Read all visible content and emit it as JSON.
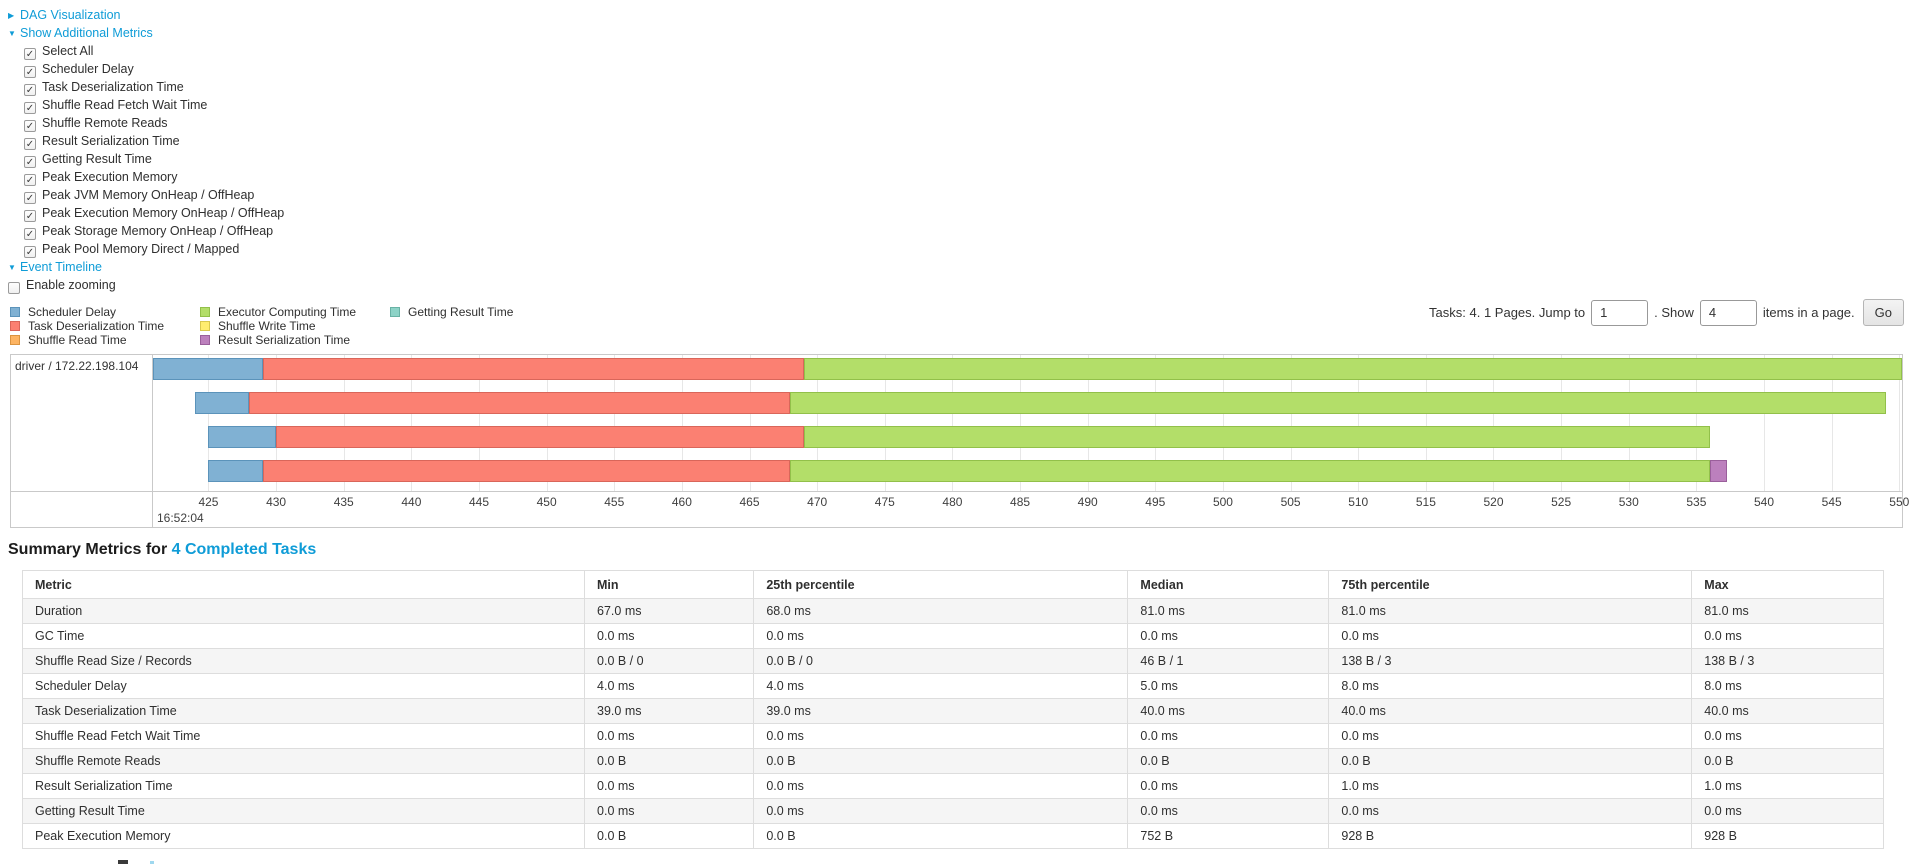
{
  "metrics_panel": {
    "dag_link": "DAG Visualization",
    "metrics_link": "Show Additional Metrics",
    "checkbox_items": [
      "Select All",
      "Scheduler Delay",
      "Task Deserialization Time",
      "Shuffle Read Fetch Wait Time",
      "Shuffle Remote Reads",
      "Result Serialization Time",
      "Getting Result Time",
      "Peak Execution Memory",
      "Peak JVM Memory OnHeap / OffHeap",
      "Peak Execution Memory OnHeap / OffHeap",
      "Peak Storage Memory OnHeap / OffHeap",
      "Peak Pool Memory Direct / Mapped"
    ],
    "timeline_link": "Event Timeline",
    "enable_zooming_label": "Enable zooming"
  },
  "pagination": {
    "prefix": "Tasks: 4. 1 Pages. Jump to",
    "page_value": "1",
    "mid": ". Show",
    "show_value": "4",
    "suffix": "items in a page.",
    "go_label": "Go"
  },
  "chart_data": {
    "type": "timeline",
    "row_label": "driver / 172.22.198.104",
    "time_label": "16:52:04",
    "axis": {
      "min": 420.9,
      "max": 550.2,
      "tick_start": 425,
      "tick_end": 550,
      "tick_step": 5,
      "unit": "ms within 16:52:04"
    },
    "legend": [
      {
        "label": "Scheduler Delay",
        "color": "#80B1D3",
        "border": "#5b93ba"
      },
      {
        "label": "Task Deserialization Time",
        "color": "#FB8072",
        "border": "#d9665a"
      },
      {
        "label": "Shuffle Read Time",
        "color": "#FDB462",
        "border": "#db9440"
      },
      {
        "label": "Executor Computing Time",
        "color": "#B3DE69",
        "border": "#92c04a"
      },
      {
        "label": "Shuffle Write Time",
        "color": "#FFED6F",
        "border": "#d9c84f"
      },
      {
        "label": "Result Serialization Time",
        "color": "#BC80BD",
        "border": "#9a5f9b"
      },
      {
        "label": "Getting Result Time",
        "color": "#8DD3C7",
        "border": "#68b2a5"
      }
    ],
    "legend_columns": [
      [
        "Scheduler Delay",
        "Task Deserialization Time",
        "Shuffle Read Time"
      ],
      [
        "Executor Computing Time",
        "Shuffle Write Time",
        "Result Serialization Time"
      ],
      [
        "Getting Result Time"
      ]
    ],
    "tasks": [
      {
        "segments": [
          {
            "metric": "Scheduler Delay",
            "start": 420.9,
            "end": 429
          },
          {
            "metric": "Task Deserialization Time",
            "start": 429,
            "end": 469
          },
          {
            "metric": "Executor Computing Time",
            "start": 469,
            "end": 550.2
          }
        ]
      },
      {
        "segments": [
          {
            "metric": "Scheduler Delay",
            "start": 424,
            "end": 428
          },
          {
            "metric": "Task Deserialization Time",
            "start": 428,
            "end": 468
          },
          {
            "metric": "Executor Computing Time",
            "start": 468,
            "end": 549
          }
        ]
      },
      {
        "segments": [
          {
            "metric": "Scheduler Delay",
            "start": 425,
            "end": 430
          },
          {
            "metric": "Task Deserialization Time",
            "start": 430,
            "end": 469
          },
          {
            "metric": "Executor Computing Time",
            "start": 469,
            "end": 536
          }
        ]
      },
      {
        "segments": [
          {
            "metric": "Scheduler Delay",
            "start": 425,
            "end": 429
          },
          {
            "metric": "Task Deserialization Time",
            "start": 429,
            "end": 468
          },
          {
            "metric": "Executor Computing Time",
            "start": 468,
            "end": 536
          },
          {
            "metric": "Result Serialization Time",
            "start": 536,
            "end": 537.3
          }
        ]
      }
    ]
  },
  "summary": {
    "title_prefix": "Summary Metrics for ",
    "title_link": "4 Completed Tasks",
    "table": {
      "headers": [
        "Metric",
        "Min",
        "25th percentile",
        "Median",
        "75th percentile",
        "Max"
      ],
      "col_widths_pct": [
        30.2,
        9.1,
        20.1,
        10.8,
        19.5,
        10.3
      ],
      "rows": [
        {
          "metric": "Duration",
          "values": [
            "67.0 ms",
            "68.0 ms",
            "81.0 ms",
            "81.0 ms",
            "81.0 ms"
          ]
        },
        {
          "metric": "GC Time",
          "values": [
            "0.0 ms",
            "0.0 ms",
            "0.0 ms",
            "0.0 ms",
            "0.0 ms"
          ]
        },
        {
          "metric": "Shuffle Read Size / Records",
          "values": [
            "0.0 B / 0",
            "0.0 B / 0",
            "46 B / 1",
            "138 B / 3",
            "138 B / 3"
          ]
        },
        {
          "metric": "Scheduler Delay",
          "values": [
            "4.0 ms",
            "4.0 ms",
            "5.0 ms",
            "8.0 ms",
            "8.0 ms"
          ]
        },
        {
          "metric": "Task Deserialization Time",
          "values": [
            "39.0 ms",
            "39.0 ms",
            "40.0 ms",
            "40.0 ms",
            "40.0 ms"
          ]
        },
        {
          "metric": "Shuffle Read Fetch Wait Time",
          "values": [
            "0.0 ms",
            "0.0 ms",
            "0.0 ms",
            "0.0 ms",
            "0.0 ms"
          ]
        },
        {
          "metric": "Shuffle Remote Reads",
          "values": [
            "0.0 B",
            "0.0 B",
            "0.0 B",
            "0.0 B",
            "0.0 B"
          ]
        },
        {
          "metric": "Result Serialization Time",
          "values": [
            "0.0 ms",
            "0.0 ms",
            "0.0 ms",
            "1.0 ms",
            "1.0 ms"
          ]
        },
        {
          "metric": "Getting Result Time",
          "values": [
            "0.0 ms",
            "0.0 ms",
            "0.0 ms",
            "0.0 ms",
            "0.0 ms"
          ]
        },
        {
          "metric": "Peak Execution Memory",
          "values": [
            "0.0 B",
            "0.0 B",
            "752 B",
            "928 B",
            "928 B"
          ]
        }
      ]
    }
  },
  "colors": {
    "link": "#0f9cd7",
    "table_stripe": "#f5f5f5",
    "chart_border": "#c9c9c9",
    "gridline": "#e7e7e7"
  }
}
